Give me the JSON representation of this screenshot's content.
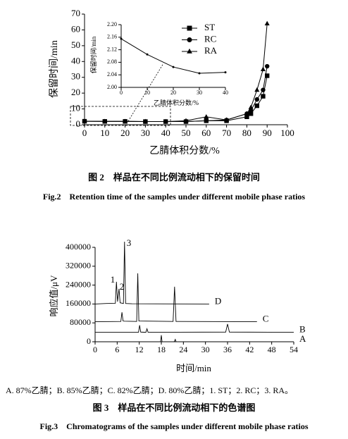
{
  "chart_data": [
    {
      "type": "line",
      "x_label": "乙腈体积分数/%",
      "y_label": "保留时间/min",
      "caption": "图 2　样品在不同比例流动相下的保留时间",
      "caption_en": "Fig.2　Retention time of the samples under different mobile phase ratios",
      "x": [
        0,
        10,
        20,
        30,
        40,
        50,
        60,
        70,
        80,
        82,
        85,
        88,
        90
      ],
      "series": [
        {
          "name": "ST",
          "color": "#000000",
          "marker": "square",
          "values": [
            2.2,
            2.1,
            2.1,
            2.0,
            2.0,
            2.0,
            2.5,
            2.5,
            5,
            7,
            12,
            18,
            31
          ]
        },
        {
          "name": "RC",
          "color": "#000000",
          "marker": "circle",
          "values": [
            2.2,
            2.1,
            2.1,
            2.0,
            2.0,
            2.0,
            2.5,
            3,
            7,
            9,
            16,
            22,
            37
          ]
        },
        {
          "name": "RA",
          "color": "#000000",
          "marker": "triangle",
          "values": [
            2.2,
            2.1,
            2.1,
            2.0,
            2.0,
            2.5,
            5,
            3,
            7,
            11,
            22,
            35,
            64
          ]
        }
      ],
      "xlim": [
        0,
        100
      ],
      "ylim": [
        0,
        70
      ],
      "xticks": [
        0,
        10,
        20,
        30,
        40,
        50,
        60,
        70,
        80,
        90,
        100
      ],
      "yticks": [
        0,
        10,
        20,
        30,
        40,
        50,
        60,
        70
      ],
      "inset": {
        "type": "line",
        "x_label": "乙腈体积分数/%",
        "y_label": "保留时间/min",
        "x": [
          0,
          10,
          20,
          30,
          40
        ],
        "values": [
          2.155,
          2.105,
          2.065,
          2.045,
          2.048
        ],
        "color": "#000000",
        "xlim": [
          0,
          40
        ],
        "ylim": [
          2.0,
          2.2
        ],
        "xticks": [
          0,
          10,
          20,
          30,
          40
        ],
        "yticks": [
          {
            "value": 2.0,
            "label": "2.00"
          },
          {
            "value": 2.04,
            "label": "2.04"
          },
          {
            "value": 2.08,
            "label": "2.08"
          },
          {
            "value": 2.12,
            "label": "2.12"
          },
          {
            "value": 2.16,
            "label": "2.16"
          },
          {
            "value": 2.2,
            "label": "2.20"
          }
        ]
      }
    },
    {
      "type": "chromatogram",
      "x_label": "时间/min",
      "y_label": "响应值/μV",
      "note": "A. 87%乙腈；B. 85%乙腈；C. 82%乙腈；D. 80%乙腈；1. ST；2. RC；3. RA。",
      "caption": "图 3　样品在不同比例流动相下的色谱图",
      "caption_en": "Fig.3　Chromatograms of the samples under different mobile phase ratios",
      "annotations": [
        "1",
        "2",
        "3"
      ],
      "series": [
        {
          "name": "D",
          "color": "#000000",
          "x": [
            0,
            3,
            5.5,
            5.8,
            6.1,
            6.5,
            6.8,
            7.7,
            8,
            8.3,
            10,
            31
          ],
          "values": [
            160000,
            162000,
            163000,
            254000,
            170000,
            224000,
            165000,
            162000,
            424000,
            162000,
            161000,
            160000
          ]
        },
        {
          "name": "C",
          "color": "#000000",
          "x": [
            0,
            7,
            7.3,
            7.6,
            8,
            11.3,
            11.6,
            11.9,
            21.2,
            21.6,
            22,
            44
          ],
          "values": [
            85000,
            86000,
            125000,
            88000,
            87000,
            86000,
            290000,
            88000,
            86000,
            233000,
            86000,
            85000
          ]
        },
        {
          "name": "B",
          "color": "#000000",
          "x": [
            0,
            11.8,
            12.1,
            12.4,
            13.8,
            14.1,
            14.4,
            35.5,
            36,
            36.5,
            54
          ],
          "values": [
            40000,
            40000,
            70000,
            41000,
            40000,
            55000,
            40000,
            41000,
            75000,
            41000,
            40000
          ]
        },
        {
          "name": "A",
          "color": "#000000",
          "x": [
            0,
            17.8,
            18,
            18.2,
            21.5,
            21.8,
            22,
            54
          ],
          "values": [
            0,
            0,
            28000,
            0,
            0,
            10000,
            0,
            0
          ]
        }
      ],
      "xlim": [
        0,
        54
      ],
      "ylim": [
        0,
        400000
      ],
      "xticks": [
        0,
        6,
        12,
        18,
        24,
        30,
        36,
        42,
        48,
        54
      ],
      "yticks": [
        0,
        80000,
        160000,
        240000,
        320000,
        400000
      ]
    }
  ]
}
